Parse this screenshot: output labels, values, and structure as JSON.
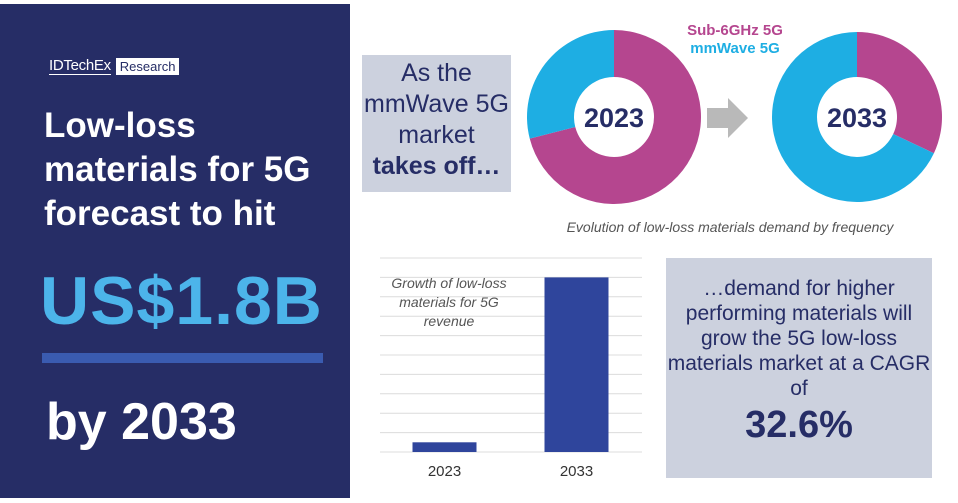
{
  "left_panel": {
    "logo_brand": "IDTechEx",
    "logo_tag": "Research",
    "headline": "Low-loss materials for 5G forecast to hit",
    "amount": "US$1.8B",
    "year_text": "by 2033"
  },
  "intro_box": {
    "line1": "As the mmWave 5G market",
    "line2": "takes off…"
  },
  "cagr_box": {
    "text": "…demand for higher performing materials will grow the 5G low-loss materials market at a CAGR of",
    "value": "32.6%"
  },
  "colors": {
    "navy": "#262d66",
    "sub6": "#b5468f",
    "mmwave": "#1eaee3",
    "bar": "#2f459c",
    "accent": "#4cb4ea"
  },
  "chart_data": [
    {
      "type": "pie",
      "variant": "donut-pair",
      "caption": "Evolution of low-loss materials demand by frequency",
      "legend": [
        "Sub-6GHz 5G",
        "mmWave 5G"
      ],
      "legend_placement": "top",
      "charts": [
        {
          "label": "2023",
          "slices": [
            {
              "name": "Sub-6GHz 5G",
              "value": 71
            },
            {
              "name": "mmWave 5G",
              "value": 29
            }
          ]
        },
        {
          "label": "2033",
          "slices": [
            {
              "name": "Sub-6GHz 5G",
              "value": 32
            },
            {
              "name": "mmWave 5G",
              "value": 68
            }
          ]
        }
      ]
    },
    {
      "type": "bar",
      "title": "Growth of low-loss materials for 5G revenue",
      "categories": [
        "2023",
        "2033"
      ],
      "values": [
        0.1,
        1.8
      ],
      "unit": "US$B",
      "ylim": [
        0,
        2
      ],
      "grid": true
    }
  ]
}
